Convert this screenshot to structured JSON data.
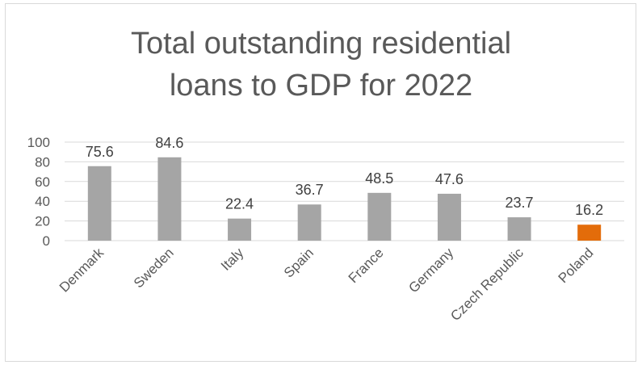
{
  "chart_data": {
    "type": "bar",
    "title_lines": [
      "Total outstanding residential",
      "loans to GDP for 2022"
    ],
    "categories": [
      "Denmark",
      "Sweden",
      "Italy",
      "Spain",
      "France",
      "Germany",
      "Czech Republic",
      "Poland"
    ],
    "values": [
      75.6,
      84.6,
      22.4,
      36.7,
      48.5,
      47.6,
      23.7,
      16.2
    ],
    "data_labels": [
      "75.6",
      "84.6",
      "22.4",
      "36.7",
      "48.5",
      "47.6",
      "23.7",
      "16.2"
    ],
    "y_ticks": [
      "0",
      "20",
      "40",
      "60",
      "80",
      "100"
    ],
    "ylim": [
      0,
      100
    ],
    "grid": true,
    "legend": "none",
    "colors": {
      "default_bar": "#a5a5a5",
      "highlight_bar": "#e36c0a",
      "gridline": "#d9d9d9"
    },
    "highlight_category": "Poland"
  }
}
